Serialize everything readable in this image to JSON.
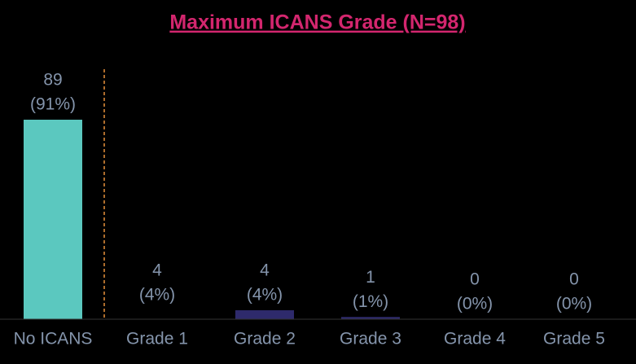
{
  "chart_data": {
    "type": "bar",
    "title": "Maximum ICANS  Grade (N=98)",
    "categories": [
      "No ICANS",
      "Grade 1",
      "Grade 2",
      "Grade 3",
      "Grade 4",
      "Grade 5"
    ],
    "values": [
      89,
      4,
      4,
      1,
      0,
      0
    ],
    "value_labels": [
      "89",
      "4",
      "4",
      "1",
      "0",
      "0"
    ],
    "percent_labels": [
      "(91%)",
      "(4%)",
      "(4%)",
      "(1%)",
      "(0%)",
      "(0%)"
    ],
    "colors": [
      "#5bc8bf",
      "#000000",
      "#2e2a6b",
      "#2e2a6b",
      "#2e2a6b",
      "#2e2a6b"
    ],
    "separator_color": "#e8913a"
  }
}
